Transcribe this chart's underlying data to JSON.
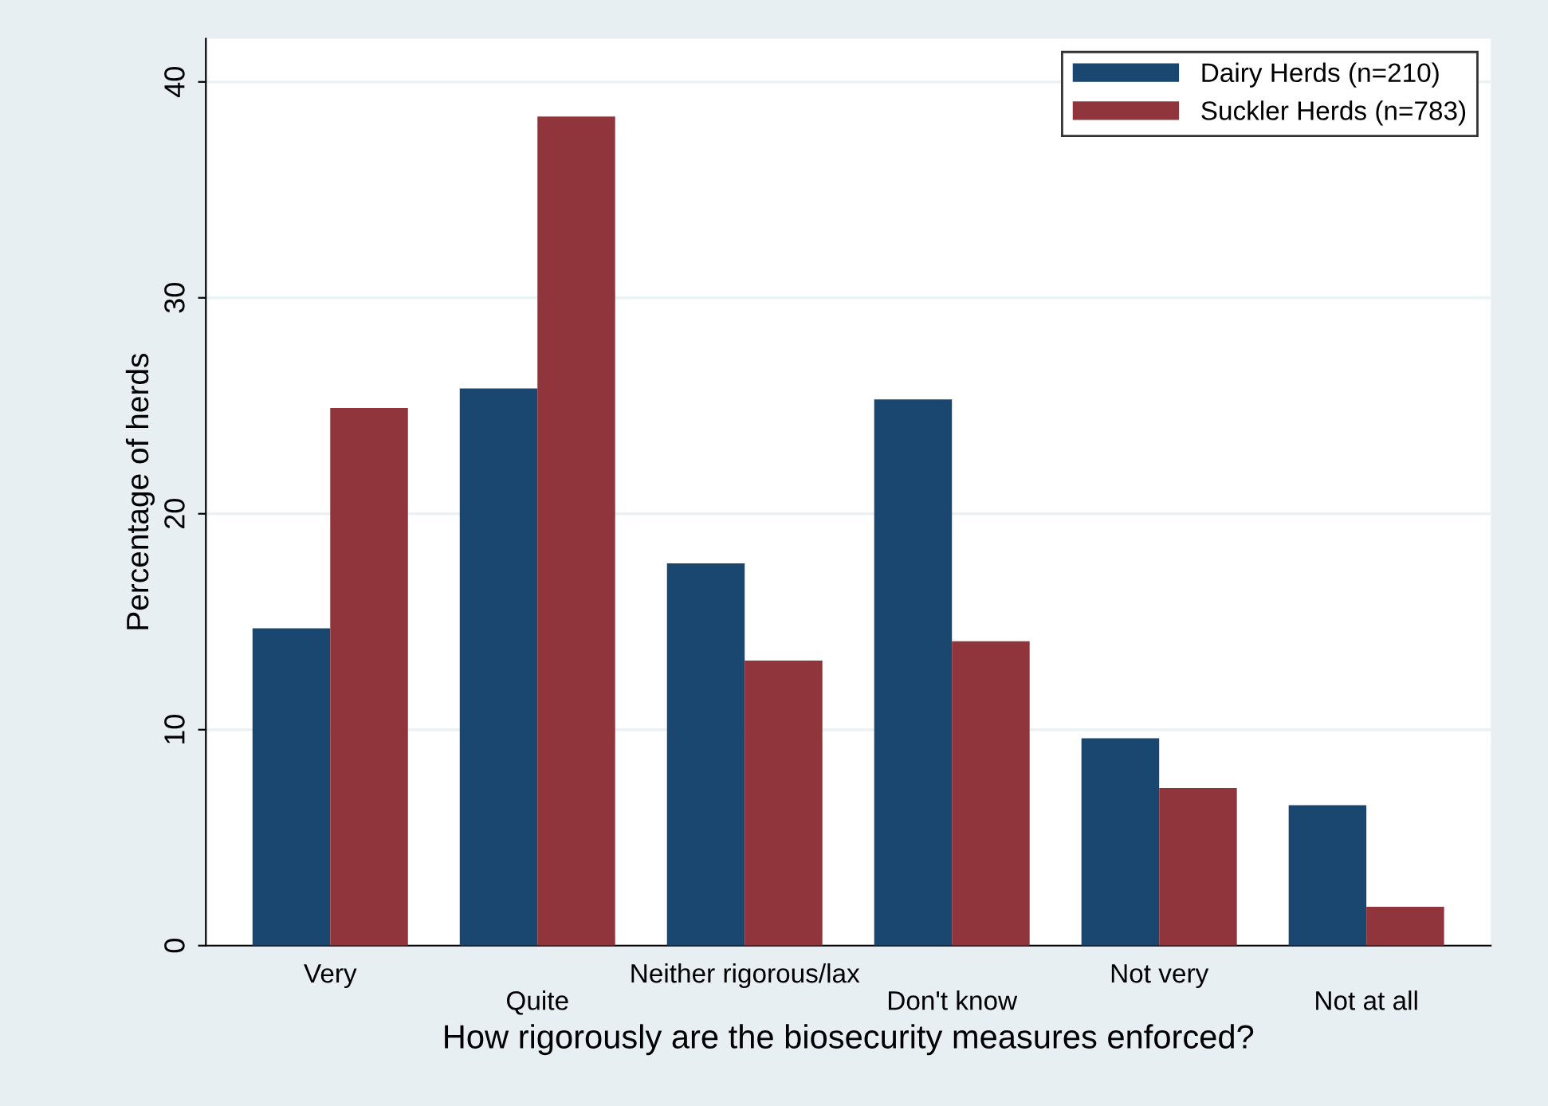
{
  "chart_data": {
    "type": "bar",
    "xlabel": "How rigorously are the biosecurity measures enforced?",
    "ylabel": "Percentage of herds",
    "categories": [
      "Very",
      "Quite",
      "Neither rigorous/lax",
      "Don't know",
      "Not very",
      "Not at all"
    ],
    "series": [
      {
        "name": "Dairy Herds (n=210)",
        "color": "#1a476f",
        "values": [
          14.7,
          25.8,
          17.7,
          25.3,
          9.6,
          6.5
        ]
      },
      {
        "name": "Suckler Herds (n=783)",
        "color": "#90353b",
        "values": [
          24.9,
          38.4,
          13.2,
          14.1,
          7.3,
          1.8
        ]
      }
    ],
    "ylim": [
      0,
      42
    ],
    "yticks": [
      0,
      10,
      20,
      30,
      40
    ],
    "grid": "y",
    "legend": "top right"
  }
}
